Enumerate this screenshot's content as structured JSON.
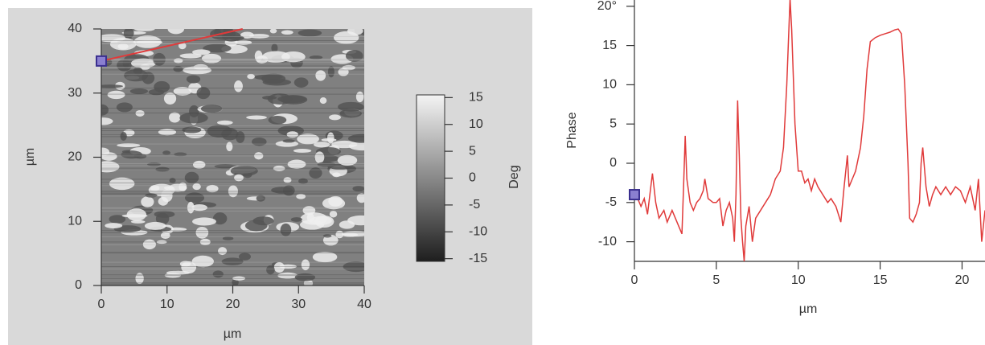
{
  "chart_data": [
    {
      "type": "image",
      "xlabel": "µm",
      "ylabel": "µm",
      "xlim": [
        0,
        40
      ],
      "ylim": [
        0,
        40
      ],
      "xticks": [
        0,
        10,
        20,
        30,
        40
      ],
      "yticks": [
        0,
        10,
        20,
        30,
        40
      ],
      "profile_line": {
        "x": [
          0,
          21.5
        ],
        "y": [
          35,
          40
        ],
        "color": "#e03a3a"
      },
      "colorbar": {
        "label": "Deg",
        "clim": [
          -15.5,
          15.5
        ],
        "ticks": [
          15,
          10,
          5,
          0,
          -5,
          -10,
          -15
        ]
      }
    },
    {
      "type": "line",
      "xlabel": "µm",
      "ylabel": "Phase",
      "xlim": [
        0,
        21.4
      ],
      "ylim": [
        -12.5,
        20.8
      ],
      "xticks": [
        0,
        5,
        10,
        15,
        20
      ],
      "yticks": [
        {
          "value": 20,
          "label": "20°"
        },
        15,
        10,
        5,
        0,
        -5,
        -10
      ],
      "color": "#e03a3a",
      "x": [
        0,
        0.2,
        0.4,
        0.6,
        0.8,
        1.0,
        1.1,
        1.3,
        1.5,
        1.8,
        2.0,
        2.3,
        2.6,
        2.9,
        3.0,
        3.1,
        3.2,
        3.4,
        3.6,
        3.8,
        4.0,
        4.2,
        4.3,
        4.5,
        4.8,
        5.0,
        5.2,
        5.4,
        5.6,
        5.8,
        6.0,
        6.1,
        6.2,
        6.3,
        6.4,
        6.5,
        6.6,
        6.7,
        6.8,
        7.0,
        7.2,
        7.4,
        7.7,
        8.0,
        8.3,
        8.6,
        8.9,
        9.1,
        9.3,
        9.5,
        9.6,
        9.8,
        10.0,
        10.2,
        10.4,
        10.6,
        10.8,
        11.0,
        11.2,
        11.5,
        11.8,
        12.0,
        12.3,
        12.6,
        12.8,
        13.0,
        13.1,
        13.3,
        13.5,
        13.8,
        14.0,
        14.2,
        14.4,
        14.7,
        15.0,
        15.3,
        15.6,
        15.9,
        16.1,
        16.3,
        16.5,
        16.7,
        16.8,
        17.0,
        17.2,
        17.4,
        17.5,
        17.6,
        17.8,
        18.0,
        18.2,
        18.4,
        18.7,
        19.0,
        19.3,
        19.6,
        19.9,
        20.2,
        20.5,
        20.8,
        21.0,
        21.2,
        21.4
      ],
      "values": [
        -4,
        -4.5,
        -5.5,
        -4.5,
        -6.5,
        -3,
        -1.3,
        -5,
        -7,
        -6,
        -7.5,
        -6,
        -7.5,
        -9,
        -3,
        3.5,
        -2,
        -5,
        -6,
        -5,
        -4.5,
        -3.5,
        -2,
        -4.5,
        -5,
        -5,
        -4.5,
        -8,
        -6,
        -5,
        -7,
        -10,
        -4,
        8,
        1,
        -7,
        -10,
        -12.5,
        -8,
        -5.5,
        -10,
        -7,
        -6,
        -5,
        -4,
        -2,
        -1,
        2,
        10,
        21,
        17,
        5,
        -1,
        -1,
        -2.5,
        -2,
        -3.5,
        -2,
        -3,
        -4,
        -5,
        -4.5,
        -5.5,
        -7.5,
        -3,
        1,
        -3,
        -2,
        -1,
        2,
        6,
        12,
        15.5,
        16,
        16.3,
        16.5,
        16.7,
        17,
        17.1,
        16.5,
        10,
        0,
        -7,
        -7.5,
        -6.5,
        -5,
        0,
        2,
        -3,
        -5.5,
        -4,
        -3,
        -4,
        -3,
        -4,
        -3,
        -3.5,
        -5,
        -3,
        -6,
        -2,
        -10,
        -6
      ]
    }
  ]
}
